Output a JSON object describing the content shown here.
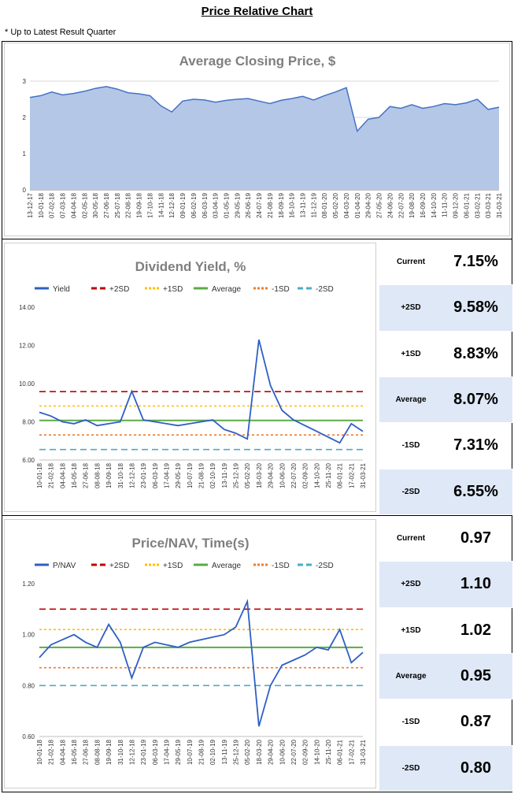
{
  "page": {
    "title": "Price Relative Chart",
    "note": "* Up to Latest Result Quarter"
  },
  "chart_data": [
    {
      "type": "area",
      "title": "Average Closing Price, $",
      "xlabel": "",
      "ylabel": "",
      "ylim": [
        0,
        3
      ],
      "yticks": [
        "0",
        "1",
        "2",
        "3"
      ],
      "grid": true,
      "color": "#4472c4",
      "fill": "#b4c7e7",
      "x_labels": [
        "13-12-17",
        "10-01-18",
        "07-02-18",
        "07-03-18",
        "04-04-18",
        "02-05-18",
        "30-05-18",
        "27-06-18",
        "25-07-18",
        "22-08-18",
        "19-09-18",
        "17-10-18",
        "14-11-18",
        "12-12-18",
        "09-01-19",
        "06-02-19",
        "06-03-19",
        "03-04-19",
        "01-05-19",
        "29-05-19",
        "26-06-19",
        "24-07-19",
        "21-08-19",
        "18-09-19",
        "16-10-19",
        "13-11-19",
        "11-12-19",
        "08-01-20",
        "05-02-20",
        "04-03-20",
        "01-04-20",
        "29-04-20",
        "27-05-20",
        "24-06-20",
        "22-07-20",
        "19-08-20",
        "16-09-20",
        "14-10-20",
        "11-11-20",
        "09-12-20",
        "06-01-21",
        "03-02-21",
        "03-03-21",
        "31-03-21"
      ],
      "values": [
        2.55,
        2.6,
        2.7,
        2.62,
        2.66,
        2.72,
        2.8,
        2.85,
        2.78,
        2.68,
        2.65,
        2.6,
        2.32,
        2.15,
        2.45,
        2.5,
        2.48,
        2.42,
        2.47,
        2.5,
        2.52,
        2.45,
        2.38,
        2.47,
        2.52,
        2.58,
        2.48,
        2.6,
        2.7,
        2.82,
        1.62,
        1.95,
        2.0,
        2.3,
        2.25,
        2.35,
        2.25,
        2.3,
        2.38,
        2.35,
        2.4,
        2.5,
        2.22,
        2.28
      ]
    },
    {
      "type": "line",
      "title": "Dividend Yield, %",
      "ylim": [
        6.0,
        14.0
      ],
      "yticks": [
        "6.00",
        "8.00",
        "10.00",
        "12.00",
        "14.00"
      ],
      "legend_position": "top",
      "series": [
        {
          "name": "Yield",
          "color": "#2e5fc4",
          "style": "solid"
        },
        {
          "name": "+2SD",
          "color": "#c00000",
          "style": "dashed",
          "value": 9.58
        },
        {
          "name": "+1SD",
          "color": "#ffc000",
          "style": "dotted",
          "value": 8.83
        },
        {
          "name": "Average",
          "color": "#5aab46",
          "style": "solid",
          "value": 8.07
        },
        {
          "name": "-1SD",
          "color": "#ed7d31",
          "style": "dotted",
          "value": 7.31
        },
        {
          "name": "-2SD",
          "color": "#4bacc6",
          "style": "dashed",
          "value": 6.55
        }
      ],
      "x_labels": [
        "10-01-18",
        "21-02-18",
        "04-04-18",
        "16-05-18",
        "27-06-18",
        "08-08-18",
        "19-09-18",
        "31-10-18",
        "12-12-18",
        "23-01-19",
        "06-03-19",
        "17-04-19",
        "29-05-19",
        "10-07-19",
        "21-08-19",
        "02-10-19",
        "13-11-19",
        "25-12-19",
        "05-02-20",
        "18-03-20",
        "29-04-20",
        "10-06-20",
        "22-07-20",
        "02-09-20",
        "14-10-20",
        "25-11-20",
        "06-01-21",
        "17-02-21",
        "31-03-21"
      ],
      "values": [
        8.5,
        8.3,
        8.0,
        7.9,
        8.1,
        7.8,
        7.9,
        8.0,
        9.6,
        8.1,
        8.0,
        7.9,
        7.8,
        7.9,
        8.0,
        8.1,
        7.6,
        7.4,
        7.1,
        12.3,
        9.9,
        8.6,
        8.1,
        7.8,
        7.5,
        7.2,
        6.9,
        7.9,
        7.5
      ]
    },
    {
      "type": "line",
      "title": "Price/NAV, Time(s)",
      "ylim": [
        0.6,
        1.2
      ],
      "yticks": [
        "0.60",
        "0.80",
        "1.00",
        "1.20"
      ],
      "legend_position": "top",
      "series": [
        {
          "name": "P/NAV",
          "color": "#2e5fc4",
          "style": "solid"
        },
        {
          "name": "+2SD",
          "color": "#c00000",
          "style": "dashed",
          "value": 1.1
        },
        {
          "name": "+1SD",
          "color": "#ffc000",
          "style": "dotted",
          "value": 1.02
        },
        {
          "name": "Average",
          "color": "#5aab46",
          "style": "solid",
          "value": 0.95
        },
        {
          "name": "-1SD",
          "color": "#ed7d31",
          "style": "dotted",
          "value": 0.87
        },
        {
          "name": "-2SD",
          "color": "#4bacc6",
          "style": "dashed",
          "value": 0.8
        }
      ],
      "x_labels": [
        "10-01-18",
        "21-02-18",
        "04-04-18",
        "16-05-18",
        "27-06-18",
        "08-08-18",
        "19-09-18",
        "31-10-18",
        "12-12-18",
        "23-01-19",
        "06-03-19",
        "17-04-19",
        "29-05-19",
        "10-07-19",
        "21-08-19",
        "02-10-19",
        "13-11-19",
        "25-12-19",
        "05-02-20",
        "18-03-20",
        "29-04-20",
        "10-06-20",
        "22-07-20",
        "02-09-20",
        "14-10-20",
        "25-11-20",
        "06-01-21",
        "17-02-21",
        "31-03-21"
      ],
      "values": [
        0.91,
        0.96,
        0.98,
        1.0,
        0.97,
        0.95,
        1.04,
        0.97,
        0.83,
        0.95,
        0.97,
        0.96,
        0.95,
        0.97,
        0.98,
        0.99,
        1.0,
        1.03,
        1.13,
        0.64,
        0.8,
        0.88,
        0.9,
        0.92,
        0.95,
        0.94,
        1.02,
        0.89,
        0.93
      ]
    }
  ],
  "stats": {
    "yield": [
      {
        "label": "Current",
        "value": "7.15%"
      },
      {
        "label": "+2SD",
        "value": "9.58%"
      },
      {
        "label": "+1SD",
        "value": "8.83%"
      },
      {
        "label": "Average",
        "value": "8.07%"
      },
      {
        "label": "-1SD",
        "value": "7.31%"
      },
      {
        "label": "-2SD",
        "value": "6.55%"
      }
    ],
    "pnav": [
      {
        "label": "Current",
        "value": "0.97"
      },
      {
        "label": "+2SD",
        "value": "1.10"
      },
      {
        "label": "+1SD",
        "value": "1.02"
      },
      {
        "label": "Average",
        "value": "0.95"
      },
      {
        "label": "-1SD",
        "value": "0.87"
      },
      {
        "label": "-2SD",
        "value": "0.80"
      }
    ]
  }
}
